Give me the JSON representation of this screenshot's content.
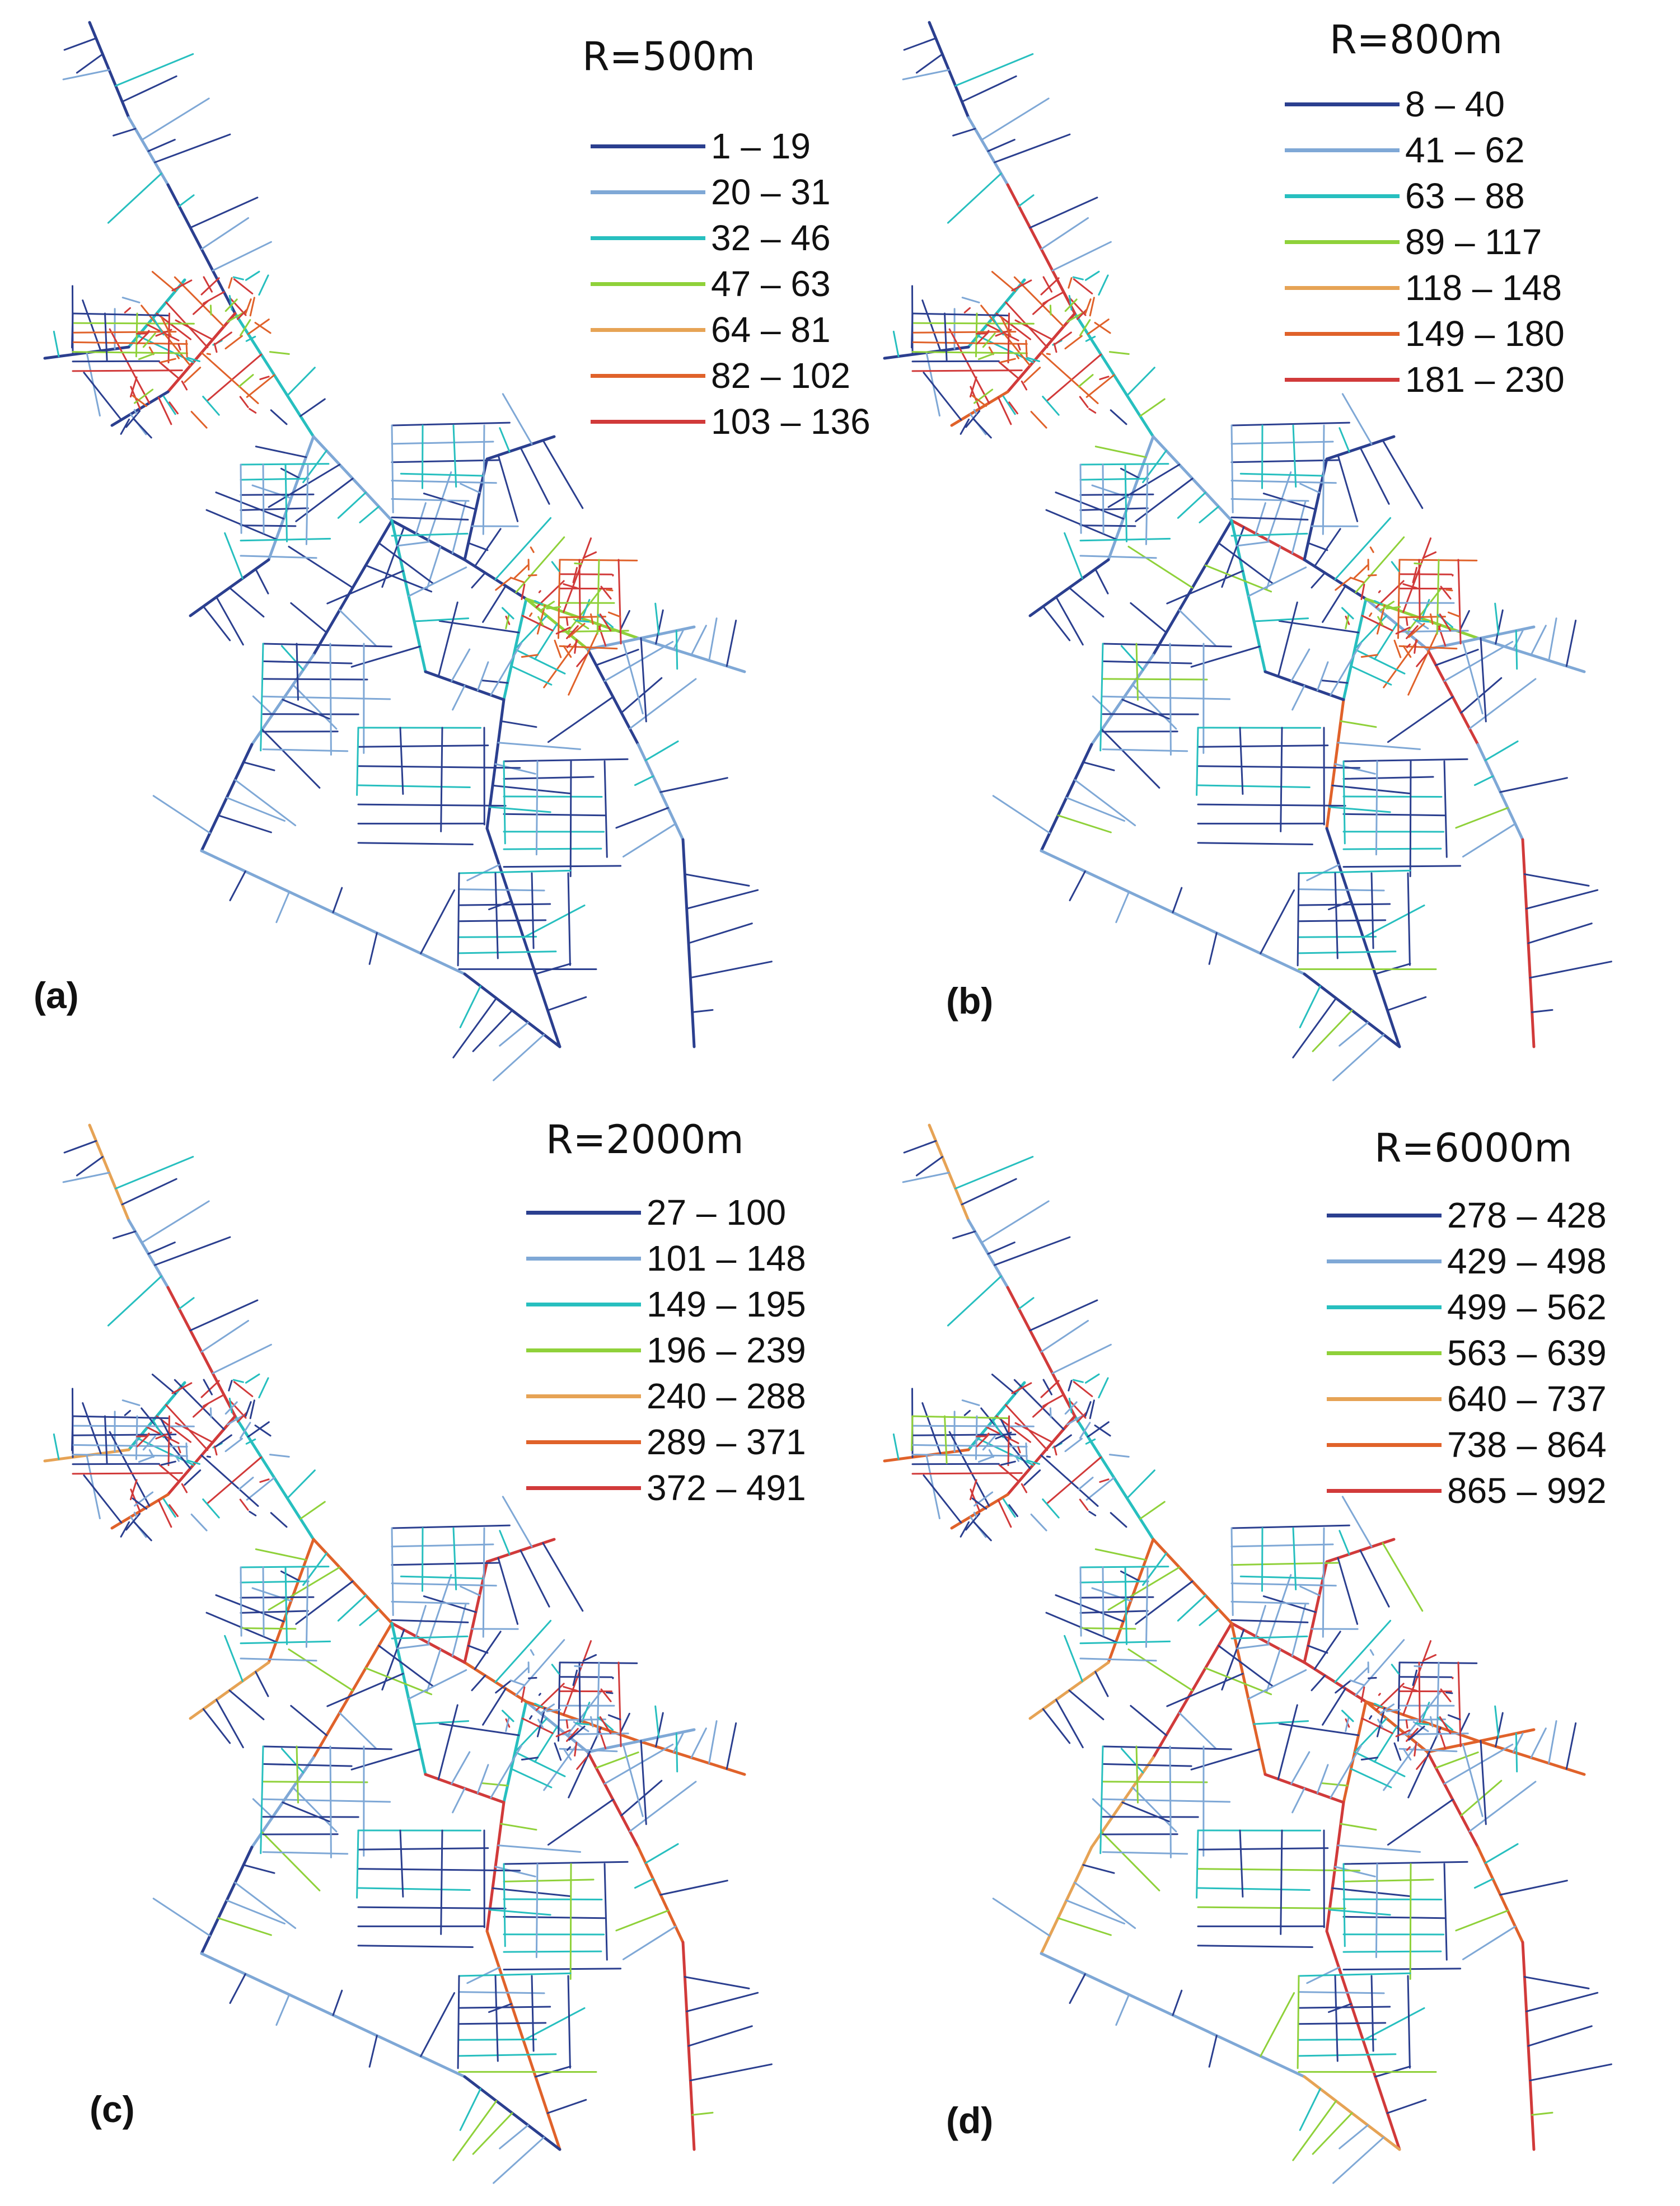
{
  "colors": [
    "#2b3f8f",
    "#7fa8d6",
    "#27bfbf",
    "#8fd13a",
    "#e6a355",
    "#e0622a",
    "#d13a3a"
  ],
  "panels": [
    {
      "label": "(a)",
      "radius": "R=500m",
      "legend": [
        "1 – 19",
        "20 – 31",
        "32 – 46",
        "47 – 63",
        "64 – 81",
        "82 – 102",
        "103 – 136"
      ],
      "hot": {
        "nw": 0.85,
        "east": 0.8,
        "spine": 0.0,
        "network": 0.0
      }
    },
    {
      "label": "(b)",
      "radius": "R=800m",
      "legend": [
        "8 – 40",
        "41 – 62",
        "63 – 88",
        "89 – 117",
        "118 – 148",
        "149 – 180",
        "181 – 230"
      ],
      "hot": {
        "nw": 0.8,
        "east": 0.75,
        "spine": 0.3,
        "network": 0.25
      }
    },
    {
      "label": "(c)",
      "radius": "R=2000m",
      "legend": [
        "27 – 100",
        "101 – 148",
        "149 – 195",
        "196 – 239",
        "240 – 288",
        "289 – 371",
        "372 – 491"
      ],
      "hot": {
        "nw": 0.35,
        "east": 0.3,
        "spine": 0.75,
        "network": 0.4
      }
    },
    {
      "label": "(d)",
      "radius": "R=6000m",
      "legend": [
        "278 – 428",
        "429 – 498",
        "499 – 562",
        "563 – 639",
        "640 – 737",
        "738 – 864",
        "865 – 992"
      ],
      "hot": {
        "nw": 0.3,
        "east": 0.35,
        "spine": 0.95,
        "network": 0.6
      }
    }
  ]
}
